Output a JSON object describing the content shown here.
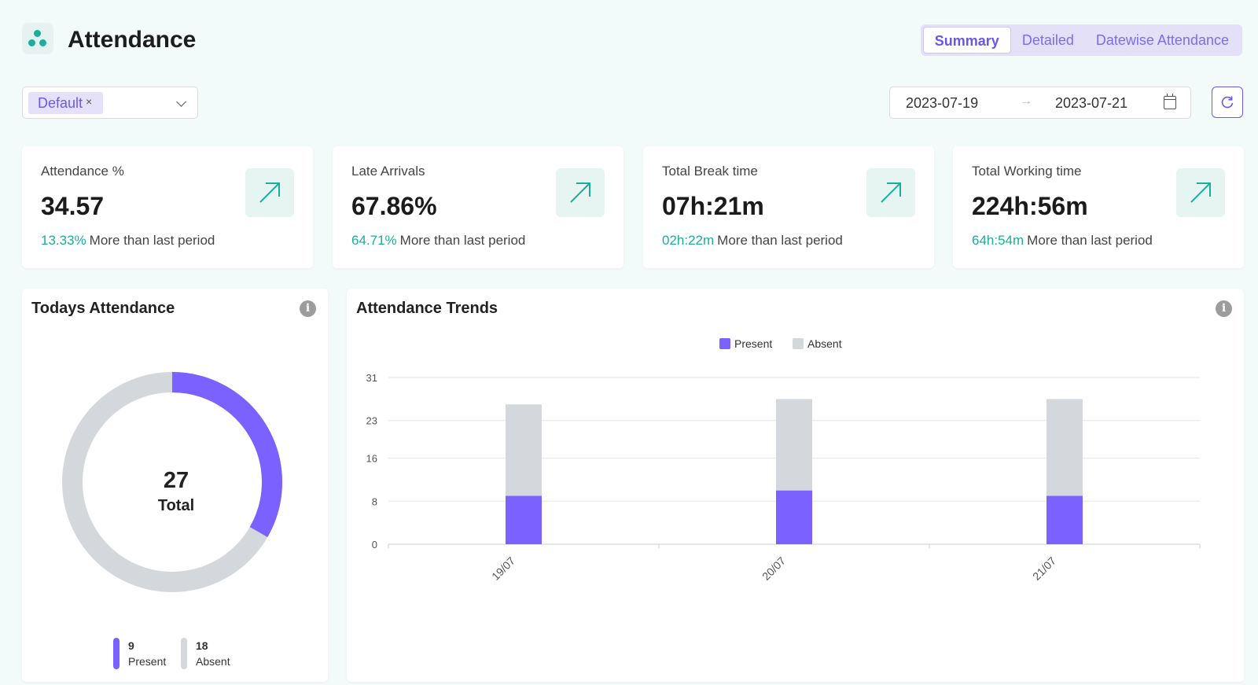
{
  "app": {
    "title": "Attendance"
  },
  "tabs": [
    {
      "label": "Summary",
      "active": true
    },
    {
      "label": "Detailed",
      "active": false
    },
    {
      "label": "Datewise Attendance",
      "active": false
    }
  ],
  "filter": {
    "tag": "Default",
    "remove_glyph": "×"
  },
  "date_range": {
    "start": "2023-07-19",
    "separator": "→",
    "end": "2023-07-21"
  },
  "stats": [
    {
      "label": "Attendance %",
      "value": "34.57",
      "delta": "13.33%",
      "note": "More than last period"
    },
    {
      "label": "Late Arrivals",
      "value": "67.86%",
      "delta": "64.71%",
      "note": "More than last period"
    },
    {
      "label": "Total Break time",
      "value": "07h:21m",
      "delta": "02h:22m",
      "note": "More than last period"
    },
    {
      "label": "Total Working time",
      "value": "224h:56m",
      "delta": "64h:54m",
      "note": "More than last period"
    }
  ],
  "today": {
    "title": "Todays Attendance",
    "total": "27",
    "total_label": "Total",
    "present": {
      "count": 9,
      "count_text": "9",
      "label": "Present"
    },
    "absent": {
      "count": 18,
      "count_text": "18",
      "label": "Absent"
    }
  },
  "trends": {
    "title": "Attendance Trends"
  },
  "colors": {
    "present": "#7b61ff",
    "absent": "#d4d8dc",
    "accent": "#1bae9a",
    "brand": "#6c58ee"
  },
  "icons": {
    "logo": "cluster-dots-icon",
    "stat": "arrow-up-right-icon",
    "info": "info-icon",
    "refresh": "refresh-icon",
    "calendar": "calendar-icon",
    "dropdown": "chevron-down-icon"
  },
  "chart_data": {
    "type": "bar",
    "stacked": true,
    "categories": [
      "19/07",
      "20/07",
      "21/07"
    ],
    "series": [
      {
        "name": "Present",
        "values": [
          9,
          10,
          9
        ]
      },
      {
        "name": "Absent",
        "values": [
          17,
          17,
          18
        ]
      }
    ],
    "yticks": [
      "31",
      "23",
      "16",
      "8",
      "0"
    ],
    "ylim": [
      0,
      31
    ],
    "legend": "top-center",
    "grid": true
  }
}
